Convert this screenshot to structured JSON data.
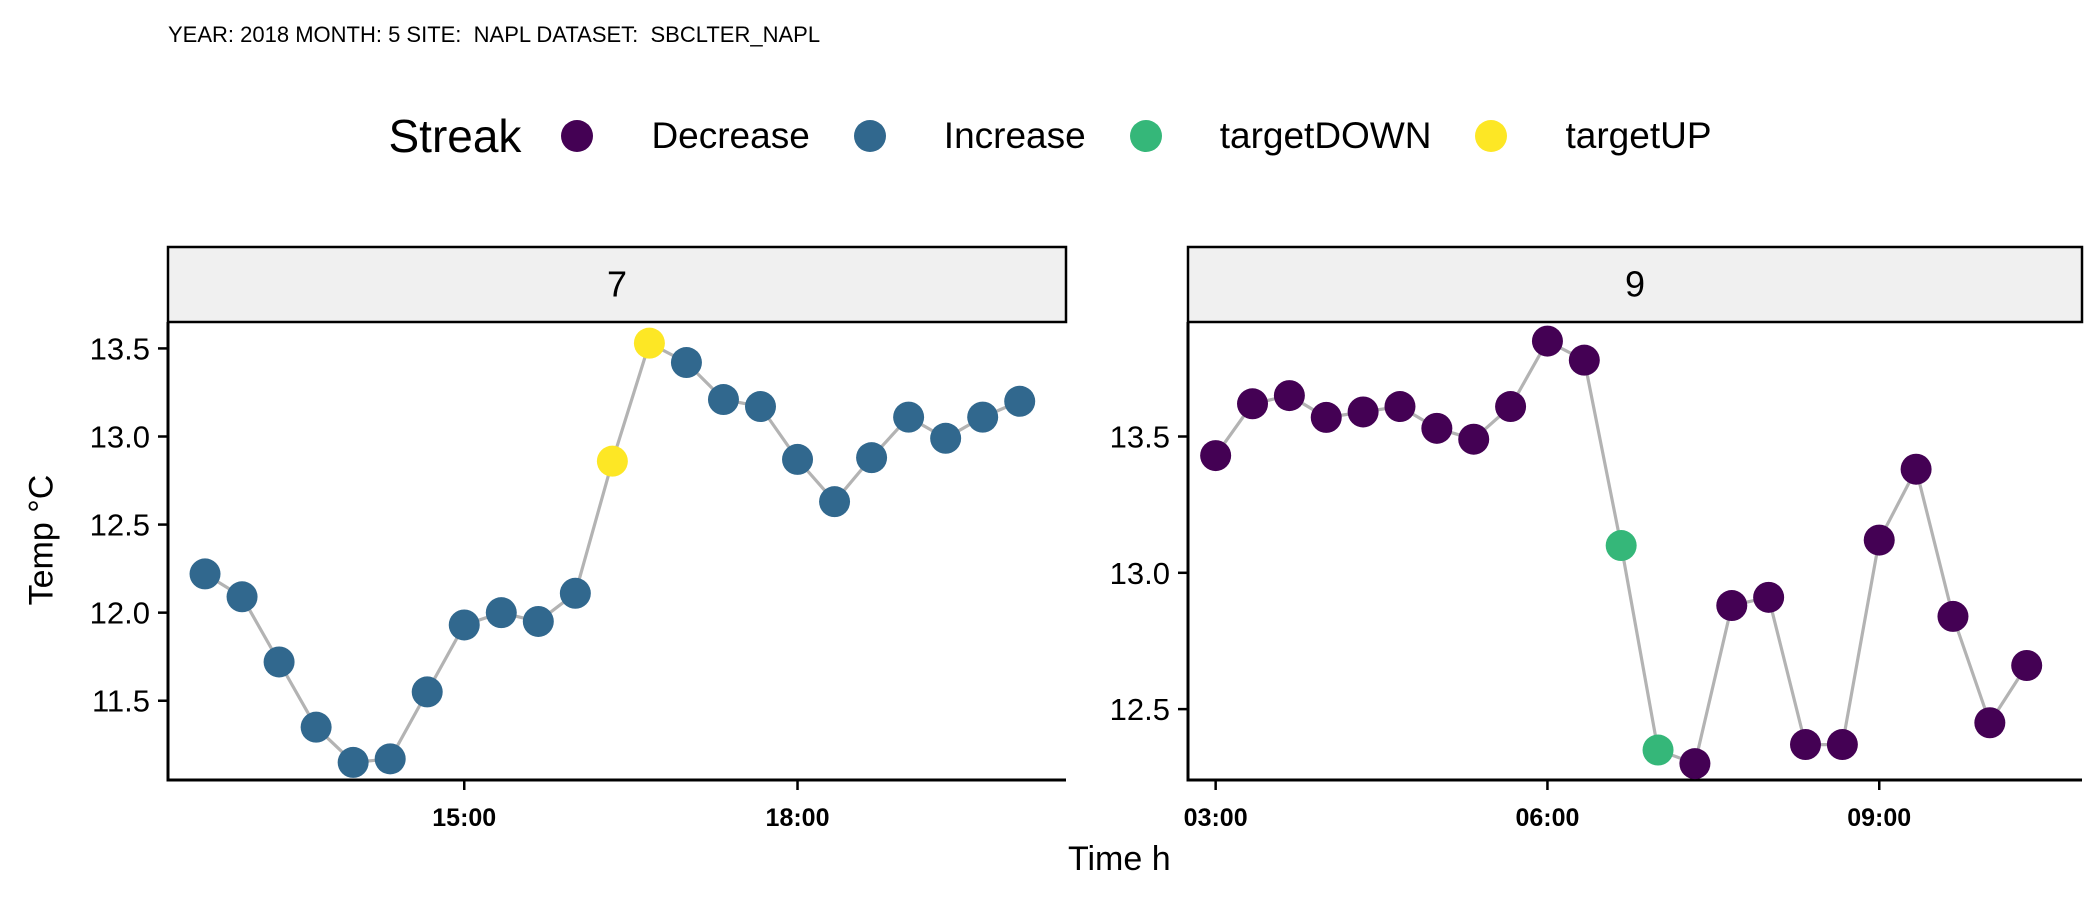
{
  "caption": "YEAR: 2018 MONTH: 5 SITE:  NAPL DATASET:  SBCLTER_NAPL",
  "legend": {
    "title": "Streak",
    "items": [
      {
        "label": "Decrease",
        "color": "#440154"
      },
      {
        "label": "Increase",
        "color": "#31688E"
      },
      {
        "label": "targetDOWN",
        "color": "#35B779"
      },
      {
        "label": "targetUP",
        "color": "#FDE725"
      }
    ]
  },
  "chart_data": {
    "type": "scatter",
    "xlabel": "Time h",
    "ylabel": "Temp °C",
    "line_color": "#B3B3B3",
    "strip_fill": "#F0F0F0",
    "panels": [
      {
        "strip": "7",
        "xlim": [
          "12:20",
          "20:25"
        ],
        "ylim": [
          11.05,
          13.65
        ],
        "x_ticks": [
          "15:00",
          "18:00"
        ],
        "y_ticks": [
          "11.5",
          "12.0",
          "12.5",
          "13.0",
          "13.5"
        ],
        "points": [
          {
            "x": "12:40",
            "y": 12.22,
            "streak": "Increase"
          },
          {
            "x": "13:00",
            "y": 12.09,
            "streak": "Increase"
          },
          {
            "x": "13:20",
            "y": 11.72,
            "streak": "Increase"
          },
          {
            "x": "13:40",
            "y": 11.35,
            "streak": "Increase"
          },
          {
            "x": "14:00",
            "y": 11.15,
            "streak": "Increase"
          },
          {
            "x": "14:20",
            "y": 11.17,
            "streak": "Increase"
          },
          {
            "x": "14:40",
            "y": 11.55,
            "streak": "Increase"
          },
          {
            "x": "15:00",
            "y": 11.93,
            "streak": "Increase"
          },
          {
            "x": "15:20",
            "y": 12.0,
            "streak": "Increase"
          },
          {
            "x": "15:40",
            "y": 11.95,
            "streak": "Increase"
          },
          {
            "x": "16:00",
            "y": 12.11,
            "streak": "Increase"
          },
          {
            "x": "16:20",
            "y": 12.86,
            "streak": "targetUP"
          },
          {
            "x": "16:40",
            "y": 13.53,
            "streak": "targetUP"
          },
          {
            "x": "17:00",
            "y": 13.42,
            "streak": "Increase"
          },
          {
            "x": "17:20",
            "y": 13.21,
            "streak": "Increase"
          },
          {
            "x": "17:40",
            "y": 13.17,
            "streak": "Increase"
          },
          {
            "x": "18:00",
            "y": 12.87,
            "streak": "Increase"
          },
          {
            "x": "18:20",
            "y": 12.63,
            "streak": "Increase"
          },
          {
            "x": "18:40",
            "y": 12.88,
            "streak": "Increase"
          },
          {
            "x": "19:00",
            "y": 13.11,
            "streak": "Increase"
          },
          {
            "x": "19:20",
            "y": 12.99,
            "streak": "Increase"
          },
          {
            "x": "19:40",
            "y": 13.11,
            "streak": "Increase"
          },
          {
            "x": "20:00",
            "y": 13.2,
            "streak": "Increase"
          }
        ]
      },
      {
        "strip": "9",
        "xlim": [
          "02:45",
          "10:50"
        ],
        "ylim": [
          12.24,
          13.92
        ],
        "x_ticks": [
          "03:00",
          "06:00",
          "09:00"
        ],
        "y_ticks": [
          "12.5",
          "13.0",
          "13.5"
        ],
        "points": [
          {
            "x": "03:00",
            "y": 13.43,
            "streak": "Decrease"
          },
          {
            "x": "03:20",
            "y": 13.62,
            "streak": "Decrease"
          },
          {
            "x": "03:40",
            "y": 13.65,
            "streak": "Decrease"
          },
          {
            "x": "04:00",
            "y": 13.57,
            "streak": "Decrease"
          },
          {
            "x": "04:20",
            "y": 13.59,
            "streak": "Decrease"
          },
          {
            "x": "04:40",
            "y": 13.61,
            "streak": "Decrease"
          },
          {
            "x": "05:00",
            "y": 13.53,
            "streak": "Decrease"
          },
          {
            "x": "05:20",
            "y": 13.49,
            "streak": "Decrease"
          },
          {
            "x": "05:40",
            "y": 13.61,
            "streak": "Decrease"
          },
          {
            "x": "06:00",
            "y": 13.85,
            "streak": "Decrease"
          },
          {
            "x": "06:20",
            "y": 13.78,
            "streak": "Decrease"
          },
          {
            "x": "06:40",
            "y": 13.1,
            "streak": "targetDOWN"
          },
          {
            "x": "07:00",
            "y": 12.35,
            "streak": "targetDOWN"
          },
          {
            "x": "07:20",
            "y": 12.3,
            "streak": "Decrease"
          },
          {
            "x": "07:40",
            "y": 12.88,
            "streak": "Decrease"
          },
          {
            "x": "08:00",
            "y": 12.91,
            "streak": "Decrease"
          },
          {
            "x": "08:20",
            "y": 12.37,
            "streak": "Decrease"
          },
          {
            "x": "08:40",
            "y": 12.37,
            "streak": "Decrease"
          },
          {
            "x": "09:00",
            "y": 13.12,
            "streak": "Decrease"
          },
          {
            "x": "09:20",
            "y": 13.38,
            "streak": "Decrease"
          },
          {
            "x": "09:40",
            "y": 12.84,
            "streak": "Decrease"
          },
          {
            "x": "10:00",
            "y": 12.45,
            "streak": "Decrease"
          },
          {
            "x": "10:20",
            "y": 12.66,
            "streak": "Decrease"
          }
        ]
      }
    ]
  }
}
